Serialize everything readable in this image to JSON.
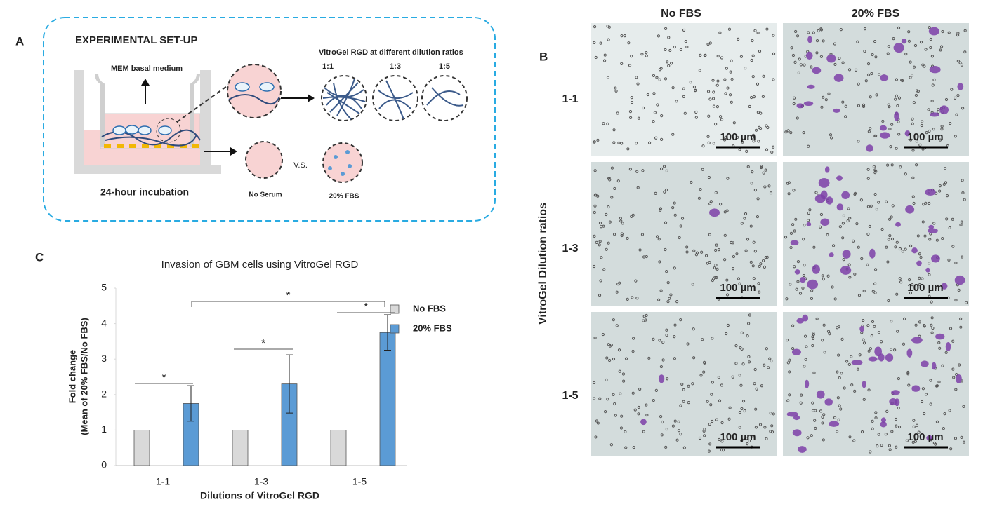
{
  "panel_a": {
    "label": "A",
    "title": "EXPERIMENTAL SET-UP",
    "medium": "MEM basal medium",
    "incubation": "24-hour incubation",
    "gel_title": "VitroGel RGD at different dilution ratios",
    "ratios": [
      "1:1",
      "1:3",
      "1:5"
    ],
    "no_serum": "No Serum",
    "versus": "V.S.",
    "fbs": "20% FBS"
  },
  "panel_b": {
    "label": "B",
    "columns": [
      "No FBS",
      "20% FBS"
    ],
    "rows": [
      "1-1",
      "1-3",
      "1-5"
    ],
    "axis_label": "VitroGel Dilution ratios",
    "scale_bar": "100 µm"
  },
  "chart_data": {
    "type": "bar",
    "panel_label": "C",
    "title": "Invasion of GBM cells using VitroGel RGD",
    "x_label": "Dilutions of VitroGel RGD",
    "y_label": [
      "Fold change",
      "(Mean of 20% FBS/No FBS)"
    ],
    "categories": [
      "1-1",
      "1-3",
      "1-5"
    ],
    "series": [
      {
        "name": "No FBS",
        "color": "#d9d9d9",
        "values": [
          1,
          1,
          1
        ]
      },
      {
        "name": "20% FBS",
        "color": "#5b9bd5",
        "values": [
          1.75,
          2.3,
          3.75
        ],
        "errors": [
          0.5,
          0.82,
          0.5
        ]
      }
    ],
    "ylim": [
      0,
      5
    ],
    "yticks": [
      0,
      1,
      2,
      3,
      4,
      5
    ],
    "annotations": [
      "*",
      "*",
      "*",
      "*"
    ],
    "legend": "right"
  }
}
